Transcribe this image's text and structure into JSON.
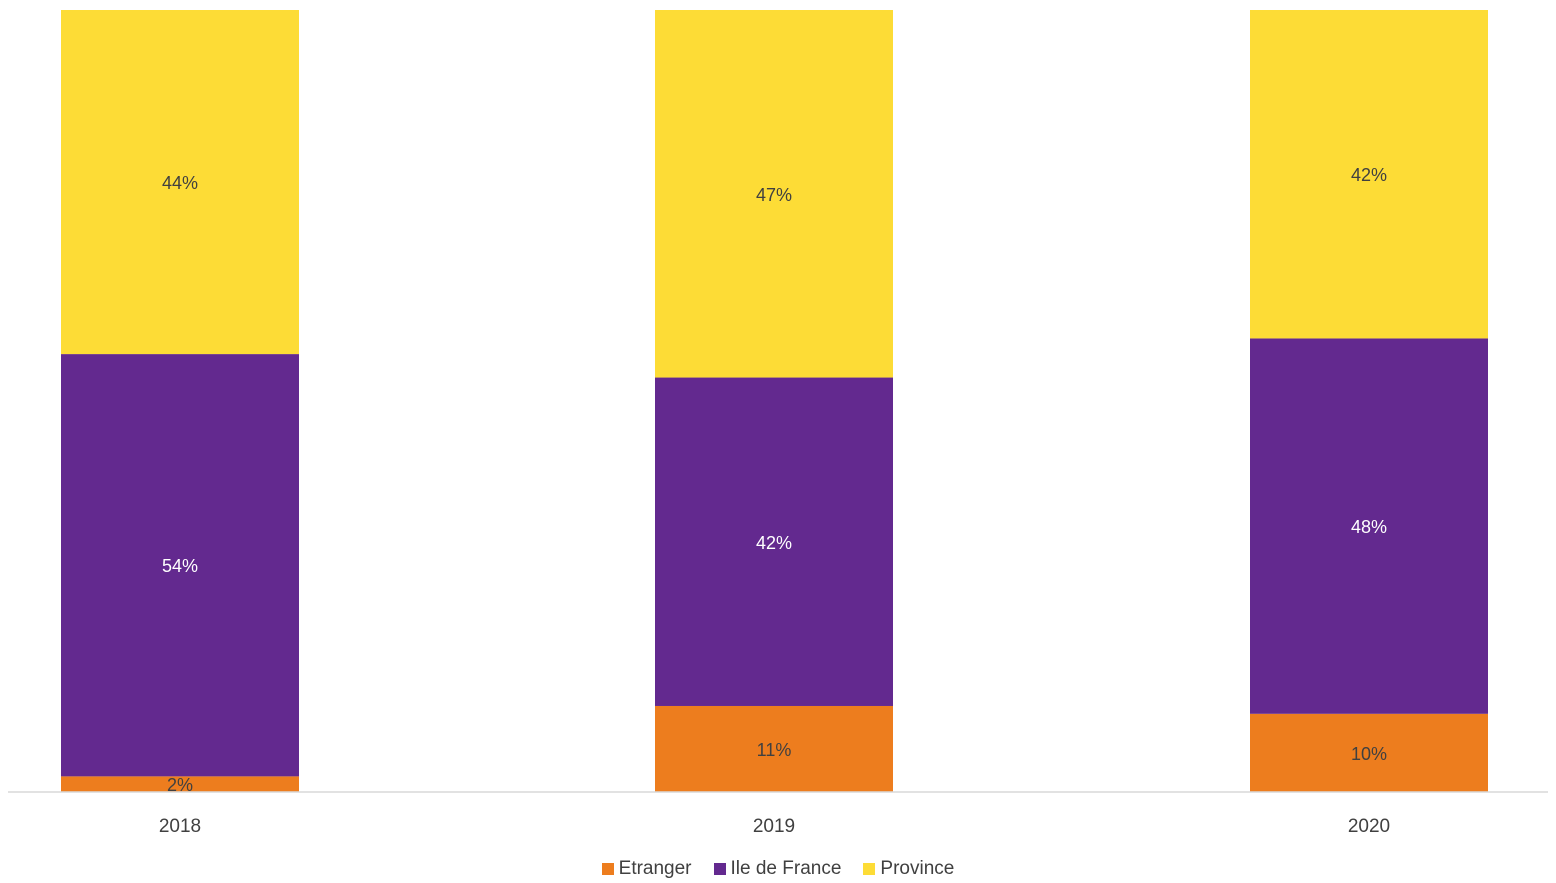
{
  "chart_data": {
    "type": "bar",
    "stacked": true,
    "categories": [
      "2018",
      "2019",
      "2020"
    ],
    "series": [
      {
        "name": "Etranger",
        "values": [
          2,
          11,
          10
        ],
        "labels": [
          "2%",
          "11%",
          "10%"
        ],
        "color": "#ED7D1E"
      },
      {
        "name": "Ile de France",
        "values": [
          54,
          42,
          48
        ],
        "labels": [
          "54%",
          "42%",
          "48%"
        ],
        "color": "#63298F"
      },
      {
        "name": "Province",
        "values": [
          44,
          47,
          42
        ],
        "labels": [
          "44%",
          "47%",
          "42%"
        ],
        "color": "#FDDC36"
      }
    ],
    "ylim": [
      0,
      100
    ],
    "grid": false,
    "legend_position": "bottom"
  }
}
